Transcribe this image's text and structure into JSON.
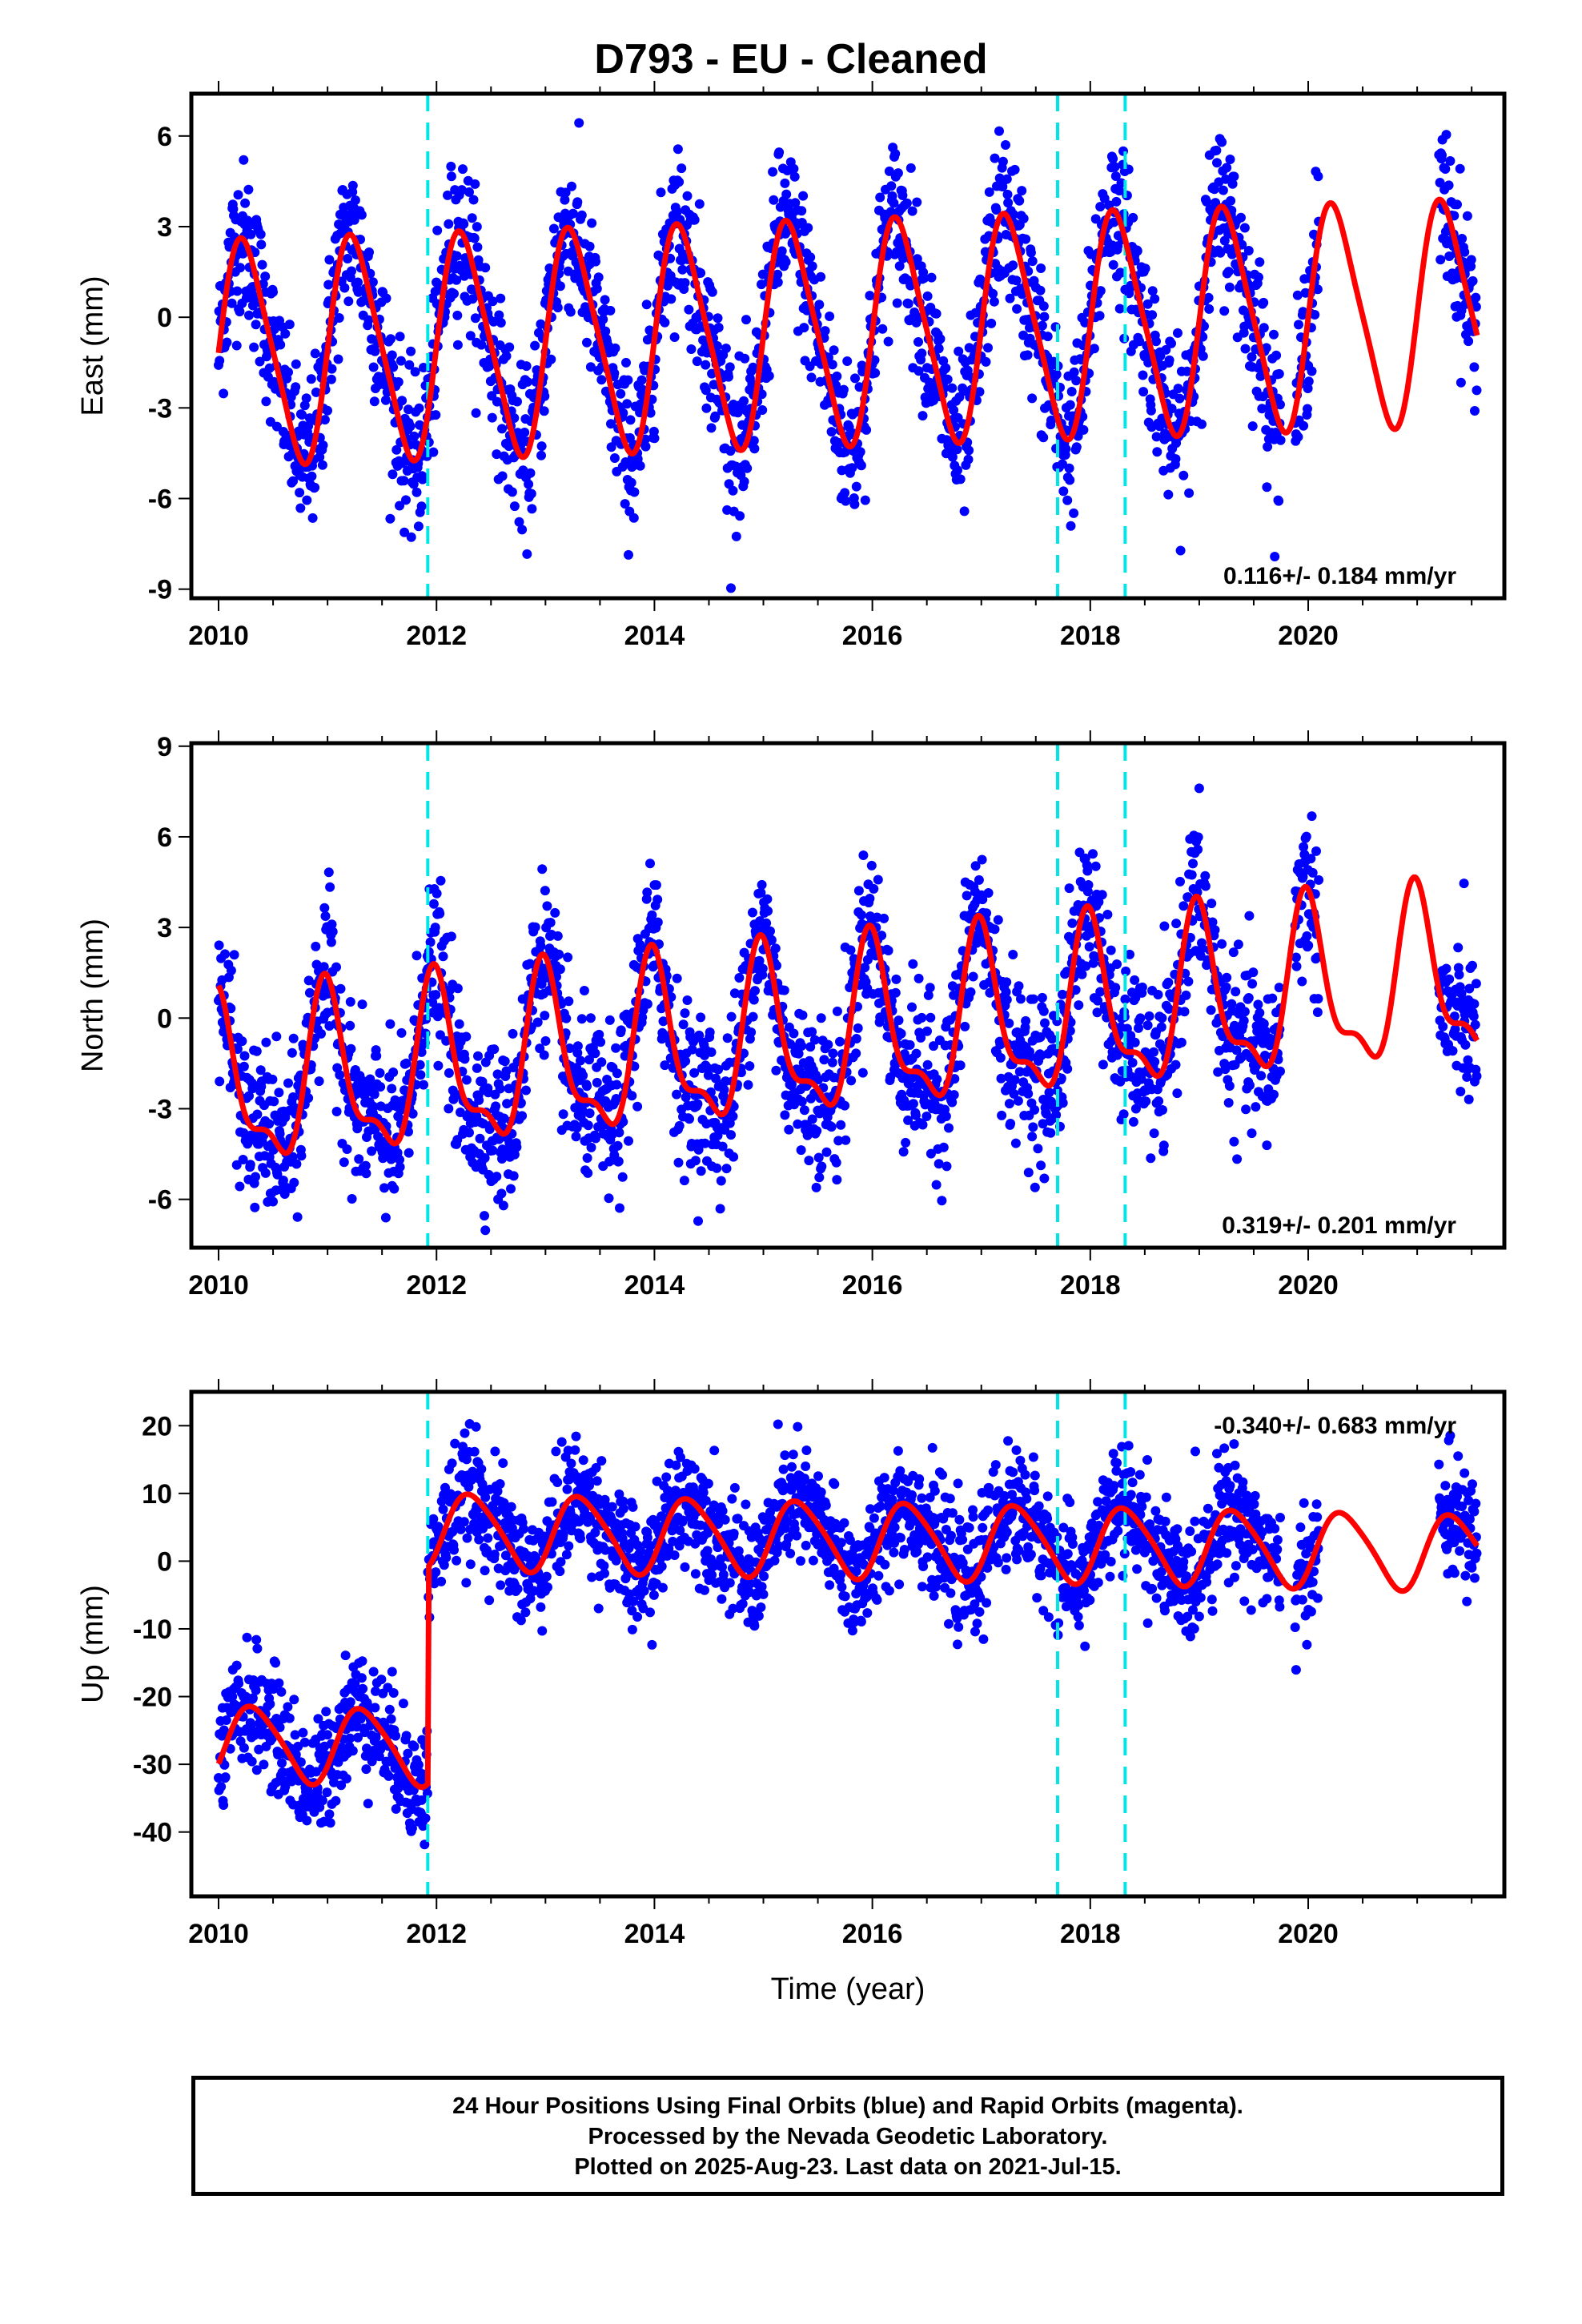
{
  "chart_data": [
    {
      "type": "scatter",
      "title": "D793  - EU - Cleaned",
      "ylabel": "East (mm)",
      "xlabel": "",
      "xlim": [
        2009.75,
        2021.8
      ],
      "ylim": [
        -9.3,
        7.4
      ],
      "x_ticks": [
        2010,
        2012,
        2014,
        2016,
        2018,
        2020
      ],
      "y_ticks": [
        6,
        3,
        0,
        -3,
        -6,
        -9
      ],
      "rate": "0.116+/- 0.184 mm/yr",
      "rate_position": "bottom-right",
      "breaks": [
        2011.92,
        2017.7,
        2018.32
      ],
      "model": {
        "offset": -0.6,
        "trend": 0.116,
        "annual_amp": 3.6,
        "semiannual_amp": 0.6,
        "phase": 0.0
      },
      "data_segments": [
        [
          2010.0,
          2019.75
        ],
        [
          2019.88,
          2020.1
        ],
        [
          2021.2,
          2021.55
        ]
      ],
      "fit_extent": [
        2010.0,
        2021.55
      ],
      "series": [
        {
          "name": "24 Hour Positions Using Final Orbits (blue)",
          "color": "#0000ff",
          "noise": 1.3
        },
        {
          "name": "model",
          "color": "#ff0000"
        }
      ]
    },
    {
      "type": "scatter",
      "ylabel": "North (mm)",
      "xlabel": "",
      "xlim": [
        2009.75,
        2021.8
      ],
      "ylim": [
        -7.6,
        9.1
      ],
      "x_ticks": [
        2010,
        2012,
        2014,
        2016,
        2018,
        2020
      ],
      "y_ticks": [
        9,
        6,
        3,
        0,
        -3,
        -6
      ],
      "rate": "0.319+/- 0.201 mm/yr",
      "rate_position": "bottom-right",
      "breaks": [
        2011.92,
        2017.7,
        2018.32
      ],
      "model": {
        "offset": -0.8,
        "trend": 0.319,
        "annual_amp": 2.6,
        "semiannual_amp": 1.0,
        "phase": 1.6
      },
      "data_segments": [
        [
          2010.0,
          2019.75
        ],
        [
          2019.88,
          2020.1
        ],
        [
          2021.2,
          2021.55
        ]
      ],
      "fit_extent": [
        2010.0,
        2021.55
      ],
      "series": [
        {
          "name": "24 Hour Positions Using Final Orbits (blue)",
          "color": "#0000ff",
          "noise": 1.3
        },
        {
          "name": "model",
          "color": "#ff0000"
        }
      ]
    },
    {
      "type": "scatter",
      "ylabel": "Up (mm)",
      "xlabel": "Time (year)",
      "xlim": [
        2009.75,
        2021.8
      ],
      "ylim": [
        -49.5,
        25.0
      ],
      "x_ticks": [
        2010,
        2012,
        2014,
        2016,
        2018,
        2020
      ],
      "y_ticks": [
        20,
        10,
        0,
        -10,
        -20,
        -30,
        -40
      ],
      "rate": "-0.340+/- 0.683 mm/yr",
      "rate_position": "top-right",
      "breaks": [
        2011.92,
        2017.7,
        2018.32
      ],
      "step": {
        "at": 2011.92,
        "before": -28.5,
        "after": 3.5
      },
      "model": {
        "offset": 0,
        "trend": -0.34,
        "annual_amp": 5.5,
        "semiannual_amp": 0.8,
        "phase": -0.5
      },
      "data_segments": [
        [
          2010.0,
          2019.75
        ],
        [
          2019.88,
          2020.1
        ],
        [
          2021.2,
          2021.55
        ]
      ],
      "fit_extent": [
        2010.0,
        2021.55
      ],
      "series": [
        {
          "name": "24 Hour Positions Using Final Orbits (blue)",
          "color": "#0000ff",
          "noise": 4.3
        },
        {
          "name": "model",
          "color": "#ff0000"
        }
      ]
    }
  ],
  "footer": {
    "line1": "24 Hour Positions Using Final Orbits (blue) and Rapid Orbits (magenta).",
    "line2": "Processed by the Nevada Geodetic Laboratory.",
    "line3": "Plotted on 2025-Aug-23. Last data on 2021-Jul-15."
  },
  "colors": {
    "points": "#0000ff",
    "model": "#ff0000",
    "breaks": "#00e5e5",
    "axes": "#000000"
  }
}
